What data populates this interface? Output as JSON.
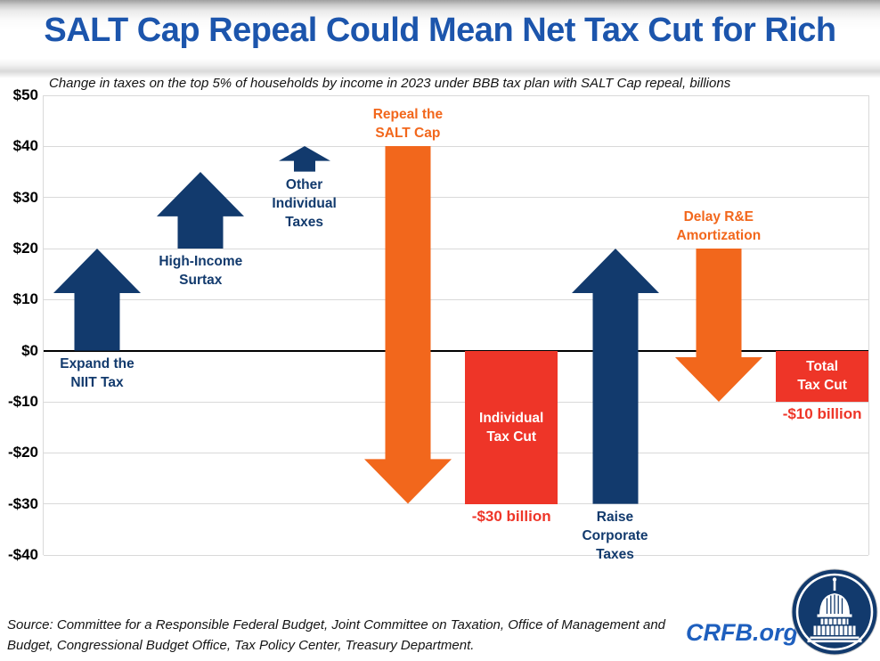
{
  "header": {
    "title": "SALT Cap Repeal Could Mean Net Tax Cut for Rich"
  },
  "subtitle": "Change in taxes on the top 5% of households by income in 2023 under BBB tax plan with SALT Cap repeal, billions",
  "footer": {
    "source": "Source: Committee for a Responsible Federal Budget, Joint Committee on Taxation, Office of Management and Budget, Congressional Budget Office, Tax Policy Center, Treasury Department.",
    "site": "CRFB.org",
    "logo_icon": "capitol-dome-icon"
  },
  "colors": {
    "navy": "#123A6D",
    "orange": "#F2671C",
    "red": "#EE3528",
    "title_blue": "#1C55AC",
    "crfb_blue": "#1E5FBE",
    "grid": "#D9D9D9",
    "zero_line": "#000000",
    "bar_text": "#FFFFFF"
  },
  "chart_data": {
    "type": "waterfall",
    "title": "SALT Cap Repeal Could Mean Net Tax Cut for Rich",
    "subtitle": "Change in taxes on the top 5% of households by income in 2023 under BBB tax plan with SALT Cap repeal, billions",
    "unit": "billions of dollars",
    "ylim": [
      -40,
      50
    ],
    "grid": true,
    "y_ticks": [
      {
        "value": 50,
        "label": "$50"
      },
      {
        "value": 40,
        "label": "$40"
      },
      {
        "value": 30,
        "label": "$30"
      },
      {
        "value": 20,
        "label": "$20"
      },
      {
        "value": 10,
        "label": "$10"
      },
      {
        "value": 0,
        "label": "$0"
      },
      {
        "value": -10,
        "label": "-$10"
      },
      {
        "value": -20,
        "label": "-$20"
      },
      {
        "value": -30,
        "label": "-$30"
      },
      {
        "value": -40,
        "label": "-$40"
      }
    ],
    "items": [
      {
        "name": "expand-niit-tax",
        "kind": "arrow-up",
        "label_lines": [
          "Expand the",
          "NIIT Tax"
        ],
        "from": 0,
        "to": 20,
        "change": 20,
        "color": "navy"
      },
      {
        "name": "high-income-surtax",
        "kind": "arrow-up",
        "label_lines": [
          "High-Income",
          "Surtax"
        ],
        "from": 20,
        "to": 35,
        "change": 15,
        "color": "navy"
      },
      {
        "name": "other-individual-taxes",
        "kind": "arrow-up",
        "label_lines": [
          "Other",
          "Individual",
          "Taxes"
        ],
        "from": 35,
        "to": 40,
        "change": 5,
        "color": "navy"
      },
      {
        "name": "repeal-the-salt-cap",
        "kind": "arrow-down",
        "label_lines": [
          "Repeal the",
          "SALT Cap"
        ],
        "from": 40,
        "to": -30,
        "change": -70,
        "color": "orange"
      },
      {
        "name": "individual-tax-cut",
        "kind": "bar",
        "label_lines": [
          "Individual",
          "Tax Cut"
        ],
        "from": 0,
        "to": -30,
        "value_label": "-$30 billion",
        "color": "red"
      },
      {
        "name": "raise-corporate-taxes",
        "kind": "arrow-up",
        "label_lines": [
          "Raise",
          "Corporate",
          "Taxes"
        ],
        "from": -30,
        "to": 20,
        "change": 50,
        "color": "navy"
      },
      {
        "name": "delay-r-and-e-amortization",
        "kind": "arrow-down",
        "label_lines": [
          "Delay R&E",
          "Amortization"
        ],
        "from": 20,
        "to": -10,
        "change": -30,
        "color": "orange"
      },
      {
        "name": "total-tax-cut",
        "kind": "bar",
        "label_lines": [
          "Total",
          "Tax Cut"
        ],
        "from": 0,
        "to": -10,
        "value_label": "-$10 billion",
        "color": "red"
      }
    ]
  }
}
